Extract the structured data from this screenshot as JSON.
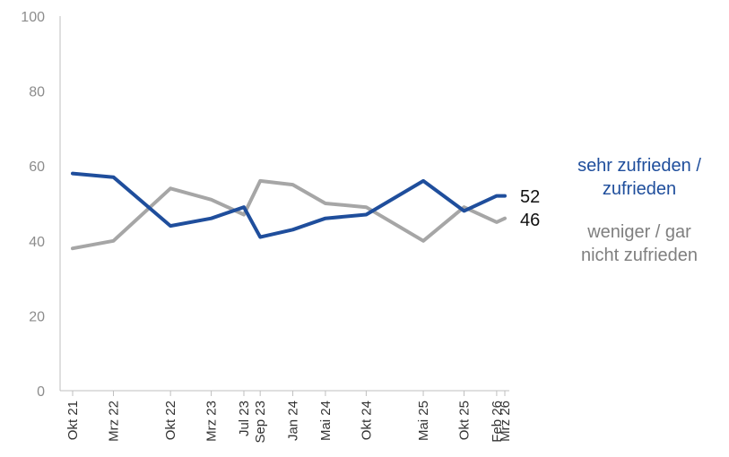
{
  "chart_data": {
    "type": "line",
    "x": [
      "Okt 21",
      "Mrz 22",
      "Okt 22",
      "Mrz 23",
      "Jul 23",
      "Sep 23",
      "Jan 24",
      "Mai 24",
      "Okt 24",
      "Mai 25",
      "Okt 25",
      "Feb 26",
      "Mrz 26"
    ],
    "x_months": [
      0,
      5,
      12,
      17,
      21,
      23,
      27,
      31,
      36,
      43,
      48,
      52,
      53
    ],
    "yticks": [
      "0",
      "20",
      "40",
      "60",
      "80",
      "100"
    ],
    "ylim": [
      0,
      100
    ],
    "grid": false,
    "legend": "right",
    "series": [
      {
        "name": "sehr zufrieden / zufrieden",
        "legend_lines": [
          "sehr zufrieden /",
          "zufrieden"
        ],
        "color": "#1f4e9c",
        "values": [
          58,
          57,
          44,
          46,
          49,
          41,
          43,
          46,
          47,
          56,
          48,
          52,
          52
        ],
        "end_label": "52"
      },
      {
        "name": "weniger / gar nicht zufrieden",
        "legend_lines": [
          "weniger / gar",
          "nicht zufrieden"
        ],
        "color": "#a6a6a6",
        "values": [
          38,
          40,
          54,
          51,
          47,
          56,
          55,
          50,
          49,
          40,
          49,
          45,
          46
        ],
        "end_label": "46"
      }
    ]
  }
}
